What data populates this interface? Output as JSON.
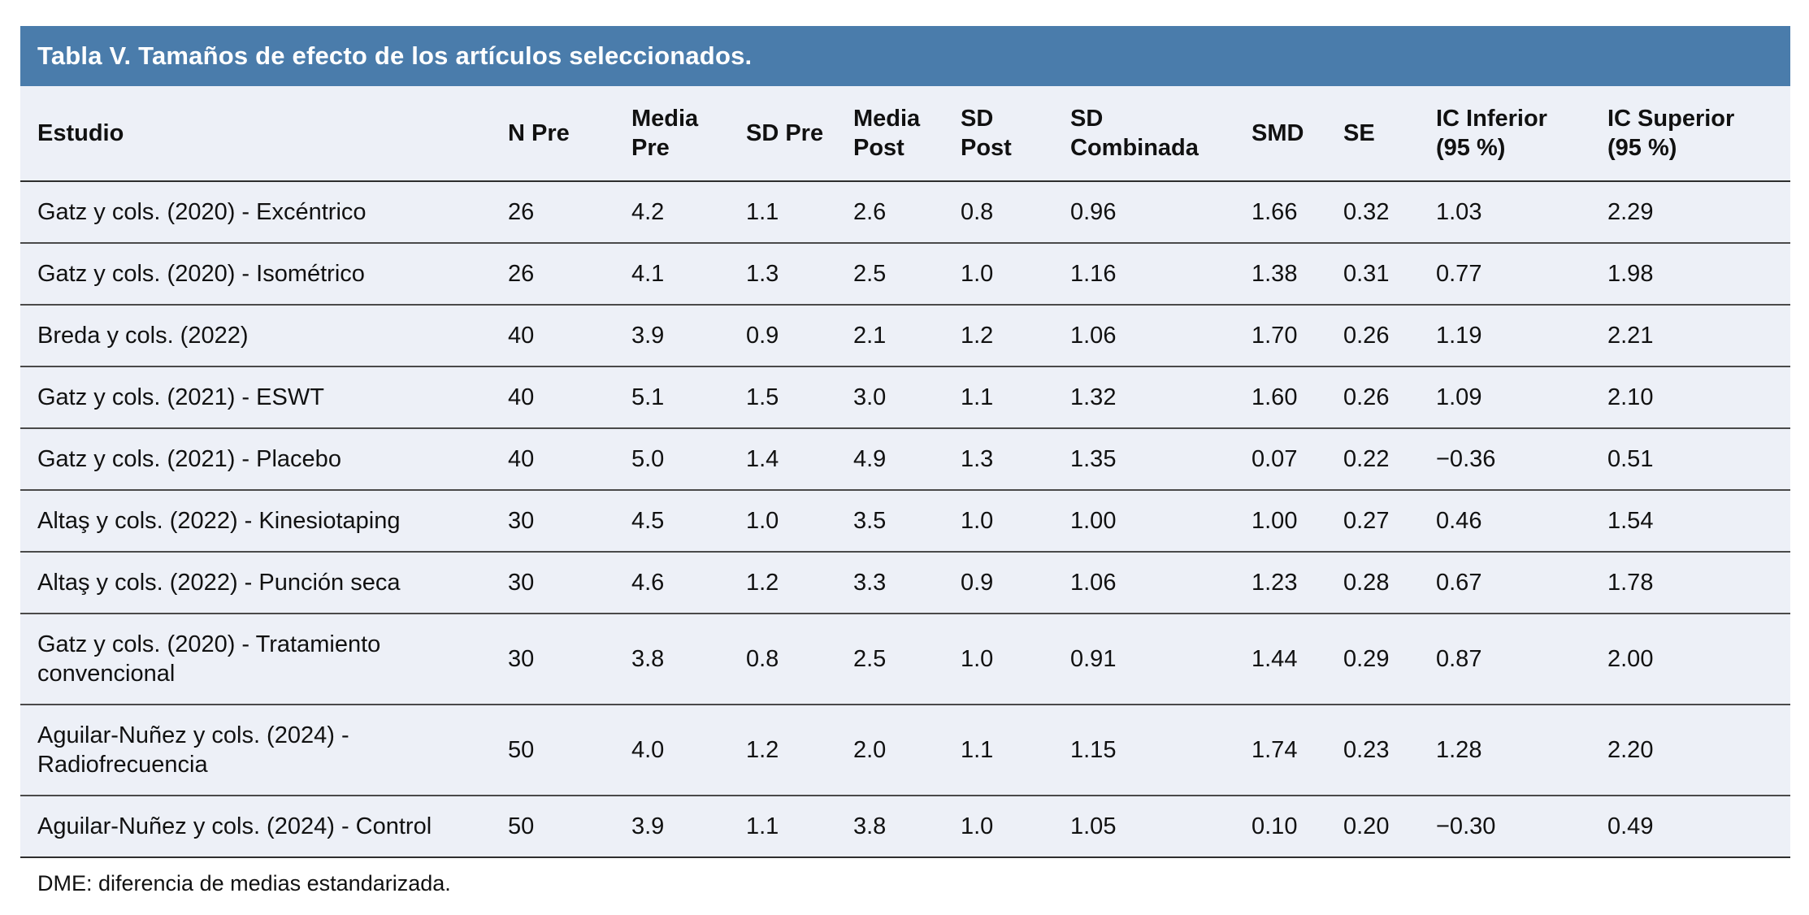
{
  "table": {
    "title": "Tabla V. Tamaños de efecto de los artículos seleccionados.",
    "columns": [
      "Estudio",
      "N Pre",
      "Media\nPre",
      "SD Pre",
      "Media\nPost",
      "SD\nPost",
      "SD\nCombinada",
      "SMD",
      "SE",
      "IC Inferior\n(95 %)",
      "IC Superior\n(95 %)"
    ],
    "rows": [
      [
        "Gatz y cols. (2020) - Excéntrico",
        "26",
        "4.2",
        "1.1",
        "2.6",
        "0.8",
        "0.96",
        "1.66",
        "0.32",
        "1.03",
        "2.29"
      ],
      [
        "Gatz y cols. (2020) - Isométrico",
        "26",
        "4.1",
        "1.3",
        "2.5",
        "1.0",
        "1.16",
        "1.38",
        "0.31",
        "0.77",
        "1.98"
      ],
      [
        "Breda y cols. (2022)",
        "40",
        "3.9",
        "0.9",
        "2.1",
        "1.2",
        "1.06",
        "1.70",
        "0.26",
        "1.19",
        "2.21"
      ],
      [
        "Gatz y cols. (2021) - ESWT",
        "40",
        "5.1",
        "1.5",
        "3.0",
        "1.1",
        "1.32",
        "1.60",
        "0.26",
        "1.09",
        "2.10"
      ],
      [
        "Gatz y cols. (2021) - Placebo",
        "40",
        "5.0",
        "1.4",
        "4.9",
        "1.3",
        "1.35",
        "0.07",
        "0.22",
        "−0.36",
        "0.51"
      ],
      [
        "Altaş y cols. (2022) - Kinesiotaping",
        "30",
        "4.5",
        "1.0",
        "3.5",
        "1.0",
        "1.00",
        "1.00",
        "0.27",
        "0.46",
        "1.54"
      ],
      [
        "Altaş y cols. (2022) - Punción seca",
        "30",
        "4.6",
        "1.2",
        "3.3",
        "0.9",
        "1.06",
        "1.23",
        "0.28",
        "0.67",
        "1.78"
      ],
      [
        "Gatz y cols. (2020) - Tratamiento convencional",
        "30",
        "3.8",
        "0.8",
        "2.5",
        "1.0",
        "0.91",
        "1.44",
        "0.29",
        "0.87",
        "2.00"
      ],
      [
        "Aguilar-Nuñez y cols. (2024) - Radiofrecuencia",
        "50",
        "4.0",
        "1.2",
        "2.0",
        "1.1",
        "1.15",
        "1.74",
        "0.23",
        "1.28",
        "2.20"
      ],
      [
        "Aguilar-Nuñez y cols. (2024) - Control",
        "50",
        "3.9",
        "1.1",
        "3.8",
        "1.0",
        "1.05",
        "0.10",
        "0.20",
        "−0.30",
        "0.49"
      ]
    ],
    "footnote": "DME: diferencia de medias estandarizada."
  },
  "colors": {
    "title_bar": "#4a7cab",
    "title_text": "#ffffff",
    "row_background": "#edf0f7",
    "row_separator": "#4a4a4a",
    "header_underline": "#2e2e2e",
    "body_text": "#111111"
  }
}
